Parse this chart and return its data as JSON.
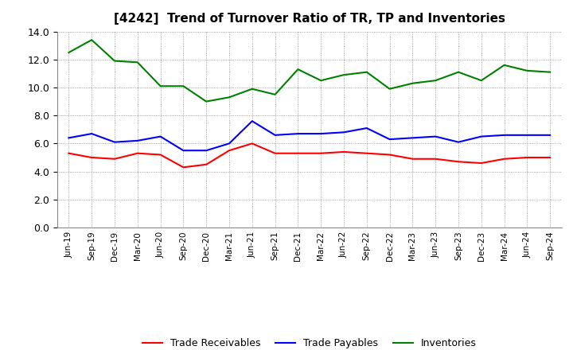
{
  "title": "[4242]  Trend of Turnover Ratio of TR, TP and Inventories",
  "labels": [
    "Jun-19",
    "Sep-19",
    "Dec-19",
    "Mar-20",
    "Jun-20",
    "Sep-20",
    "Dec-20",
    "Mar-21",
    "Jun-21",
    "Sep-21",
    "Dec-21",
    "Mar-22",
    "Jun-22",
    "Sep-22",
    "Dec-22",
    "Mar-23",
    "Jun-23",
    "Sep-23",
    "Dec-23",
    "Mar-24",
    "Jun-24",
    "Sep-24"
  ],
  "trade_receivables": [
    5.3,
    5.0,
    4.9,
    5.3,
    5.2,
    4.3,
    4.5,
    5.5,
    6.0,
    5.3,
    5.3,
    5.3,
    5.4,
    5.3,
    5.2,
    4.9,
    4.9,
    4.7,
    4.6,
    4.9,
    5.0,
    5.0
  ],
  "trade_payables": [
    6.4,
    6.7,
    6.1,
    6.2,
    6.5,
    5.5,
    5.5,
    6.0,
    7.6,
    6.6,
    6.7,
    6.7,
    6.8,
    7.1,
    6.3,
    6.4,
    6.5,
    6.1,
    6.5,
    6.6,
    6.6,
    6.6
  ],
  "inventories": [
    12.5,
    13.4,
    11.9,
    11.8,
    10.1,
    10.1,
    9.0,
    9.3,
    9.9,
    9.5,
    11.3,
    10.5,
    10.9,
    11.1,
    9.9,
    10.3,
    10.5,
    11.1,
    10.5,
    11.6,
    11.2,
    11.1
  ],
  "color_tr": "#ff0000",
  "color_tp": "#0000ff",
  "color_inv": "#008000",
  "ylim": [
    0.0,
    14.0
  ],
  "yticks": [
    0.0,
    2.0,
    4.0,
    6.0,
    8.0,
    10.0,
    12.0,
    14.0
  ],
  "legend_labels": [
    "Trade Receivables",
    "Trade Payables",
    "Inventories"
  ],
  "background_color": "#ffffff",
  "grid_color": "#aaaaaa"
}
